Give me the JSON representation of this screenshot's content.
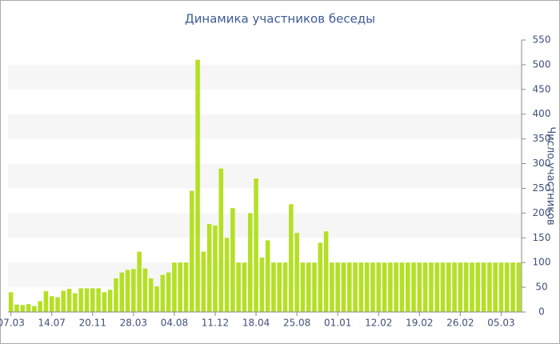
{
  "chart_data": {
    "type": "bar",
    "title": "Динамика участников беседы",
    "y_axis_label": "Число участников",
    "categories": [
      "07.03",
      null,
      null,
      null,
      null,
      null,
      null,
      "14.07",
      null,
      null,
      null,
      null,
      null,
      null,
      "20.11",
      null,
      null,
      null,
      null,
      null,
      null,
      "28.03",
      null,
      null,
      null,
      null,
      null,
      null,
      "04.08",
      null,
      null,
      null,
      null,
      null,
      null,
      "11.12",
      null,
      null,
      null,
      null,
      null,
      null,
      "18.04",
      null,
      null,
      null,
      null,
      null,
      null,
      "25.08",
      null,
      null,
      null,
      null,
      null,
      null,
      "01.01",
      null,
      null,
      null,
      null,
      null,
      null,
      "12.02",
      null,
      null,
      null,
      null,
      null,
      null,
      "19.02",
      null,
      null,
      null,
      null,
      null,
      null,
      "26.02",
      null,
      null,
      null,
      null,
      null,
      null,
      "05.03",
      null,
      null,
      null
    ],
    "values": [
      40,
      15,
      14,
      16,
      12,
      22,
      42,
      32,
      30,
      43,
      47,
      38,
      48,
      48,
      48,
      48,
      40,
      45,
      68,
      80,
      85,
      87,
      122,
      88,
      68,
      52,
      75,
      80,
      100,
      100,
      100,
      245,
      510,
      122,
      178,
      175,
      290,
      150,
      210,
      100,
      100,
      200,
      270,
      110,
      145,
      100,
      100,
      100,
      218,
      160,
      100,
      100,
      100,
      140,
      163,
      100,
      100,
      100,
      100,
      100,
      100,
      100,
      100,
      100,
      100,
      100,
      100,
      100,
      100,
      100,
      100,
      100,
      100,
      100,
      100,
      100,
      100,
      100,
      100,
      100,
      100,
      100,
      100,
      100,
      100,
      100,
      100,
      100
    ],
    "color": "#b4e024",
    "ylim": [
      0,
      550
    ],
    "yticks": [
      0,
      50,
      100,
      150,
      200,
      250,
      300,
      350,
      400,
      450,
      500,
      550
    ],
    "grid": true,
    "y_axis_side": "right"
  }
}
